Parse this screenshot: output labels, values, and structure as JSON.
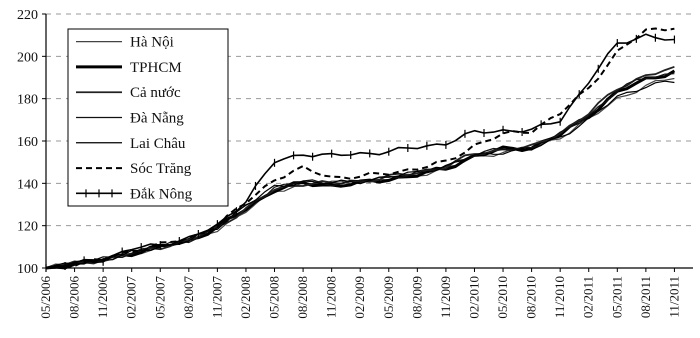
{
  "chart_data": {
    "type": "line",
    "ylim": [
      100,
      220
    ],
    "yticks": [
      "220",
      "200",
      "180",
      "160",
      "140",
      "120",
      "100"
    ],
    "xticks": [
      "05/2006",
      "08/2006",
      "11/2006",
      "02/2007",
      "05/2007",
      "08/2007",
      "11/2007",
      "02/2008",
      "05/2008",
      "08/2008",
      "11/2008",
      "02/2009",
      "05/2009",
      "08/2009",
      "11/2009",
      "02/2010",
      "05/2010",
      "08/2010",
      "11/2010",
      "02/2011",
      "05/2011",
      "08/2011",
      "11/2011"
    ],
    "grid": "horizontal dashed",
    "legend_position": "top-left",
    "series": [
      {
        "name": "Hà Nội",
        "style": "thin",
        "color": "#444444",
        "points": [
          [
            0,
            100
          ],
          [
            3,
            102
          ],
          [
            6,
            104
          ],
          [
            9,
            106
          ],
          [
            12,
            110
          ],
          [
            15,
            113
          ],
          [
            18,
            118
          ],
          [
            21,
            127
          ],
          [
            24,
            136
          ],
          [
            27,
            140
          ],
          [
            30,
            140
          ],
          [
            33,
            141
          ],
          [
            36,
            142
          ],
          [
            39,
            144
          ],
          [
            42,
            147
          ],
          [
            45,
            152
          ],
          [
            48,
            155
          ],
          [
            51,
            156
          ],
          [
            54,
            162
          ],
          [
            57,
            170
          ],
          [
            60,
            180
          ],
          [
            63,
            186
          ],
          [
            66,
            190
          ]
        ]
      },
      {
        "name": "TPHCM",
        "style": "thick",
        "color": "#000000",
        "points": [
          [
            0,
            100
          ],
          [
            3,
            102
          ],
          [
            6,
            104
          ],
          [
            9,
            107
          ],
          [
            12,
            110
          ],
          [
            15,
            113
          ],
          [
            18,
            119
          ],
          [
            21,
            128
          ],
          [
            24,
            137
          ],
          [
            27,
            140
          ],
          [
            30,
            139
          ],
          [
            33,
            140
          ],
          [
            36,
            142
          ],
          [
            39,
            144
          ],
          [
            42,
            147
          ],
          [
            45,
            153
          ],
          [
            48,
            156
          ],
          [
            51,
            157
          ],
          [
            54,
            163
          ],
          [
            57,
            172
          ],
          [
            60,
            183
          ],
          [
            63,
            189
          ],
          [
            66,
            193
          ]
        ]
      },
      {
        "name": "Cả nước",
        "style": "medium",
        "color": "#222222",
        "points": [
          [
            0,
            100
          ],
          [
            3,
            102
          ],
          [
            6,
            104
          ],
          [
            9,
            107
          ],
          [
            12,
            110
          ],
          [
            15,
            113
          ],
          [
            18,
            119
          ],
          [
            21,
            128
          ],
          [
            24,
            137
          ],
          [
            27,
            140
          ],
          [
            30,
            140
          ],
          [
            33,
            141
          ],
          [
            36,
            143
          ],
          [
            39,
            145
          ],
          [
            42,
            148
          ],
          [
            45,
            154
          ],
          [
            48,
            156
          ],
          [
            51,
            157
          ],
          [
            54,
            164
          ],
          [
            57,
            173
          ],
          [
            60,
            185
          ],
          [
            63,
            191
          ],
          [
            66,
            194
          ]
        ]
      },
      {
        "name": "Đà Nẵng",
        "style": "thin",
        "color": "#111111",
        "points": [
          [
            0,
            100
          ],
          [
            3,
            102
          ],
          [
            6,
            104
          ],
          [
            9,
            107
          ],
          [
            12,
            110
          ],
          [
            15,
            113
          ],
          [
            18,
            119
          ],
          [
            21,
            129
          ],
          [
            24,
            138
          ],
          [
            27,
            141
          ],
          [
            30,
            140
          ],
          [
            33,
            141
          ],
          [
            36,
            143
          ],
          [
            39,
            145
          ],
          [
            42,
            148
          ],
          [
            45,
            154
          ],
          [
            48,
            156
          ],
          [
            51,
            157
          ],
          [
            54,
            163
          ],
          [
            57,
            172
          ],
          [
            60,
            184
          ],
          [
            63,
            190
          ],
          [
            66,
            192
          ]
        ]
      },
      {
        "name": "Lai Châu",
        "style": "thin",
        "color": "#000000",
        "points": [
          [
            0,
            100
          ],
          [
            3,
            102
          ],
          [
            6,
            104
          ],
          [
            9,
            107
          ],
          [
            12,
            110
          ],
          [
            15,
            113
          ],
          [
            18,
            119
          ],
          [
            21,
            130
          ],
          [
            24,
            138
          ],
          [
            27,
            141
          ],
          [
            30,
            140
          ],
          [
            33,
            141
          ],
          [
            36,
            143
          ],
          [
            39,
            145
          ],
          [
            42,
            148
          ],
          [
            45,
            153
          ],
          [
            48,
            155
          ],
          [
            51,
            156
          ],
          [
            54,
            162
          ],
          [
            57,
            170
          ],
          [
            60,
            181
          ],
          [
            63,
            186
          ],
          [
            66,
            188
          ]
        ]
      },
      {
        "name": "Sóc Trăng",
        "style": "dashed",
        "color": "#000000",
        "points": [
          [
            0,
            100
          ],
          [
            3,
            102
          ],
          [
            6,
            104
          ],
          [
            9,
            108
          ],
          [
            12,
            111
          ],
          [
            15,
            114
          ],
          [
            18,
            120
          ],
          [
            21,
            131
          ],
          [
            24,
            142
          ],
          [
            27,
            147
          ],
          [
            30,
            143
          ],
          [
            33,
            143
          ],
          [
            36,
            145
          ],
          [
            39,
            147
          ],
          [
            42,
            150
          ],
          [
            45,
            158
          ],
          [
            48,
            163
          ],
          [
            51,
            165
          ],
          [
            54,
            173
          ],
          [
            57,
            185
          ],
          [
            60,
            202
          ],
          [
            63,
            212
          ],
          [
            66,
            214
          ]
        ]
      },
      {
        "name": "Đắk Nông",
        "style": "marker",
        "color": "#000000",
        "points": [
          [
            0,
            100
          ],
          [
            3,
            102
          ],
          [
            6,
            104
          ],
          [
            9,
            109
          ],
          [
            12,
            111
          ],
          [
            15,
            114
          ],
          [
            18,
            120
          ],
          [
            21,
            132
          ],
          [
            24,
            150
          ],
          [
            27,
            154
          ],
          [
            30,
            153
          ],
          [
            33,
            154
          ],
          [
            36,
            155
          ],
          [
            39,
            157
          ],
          [
            42,
            159
          ],
          [
            45,
            164
          ],
          [
            48,
            165
          ],
          [
            51,
            165
          ],
          [
            54,
            170
          ],
          [
            57,
            188
          ],
          [
            60,
            206
          ],
          [
            63,
            210
          ],
          [
            66,
            207
          ]
        ]
      }
    ]
  }
}
